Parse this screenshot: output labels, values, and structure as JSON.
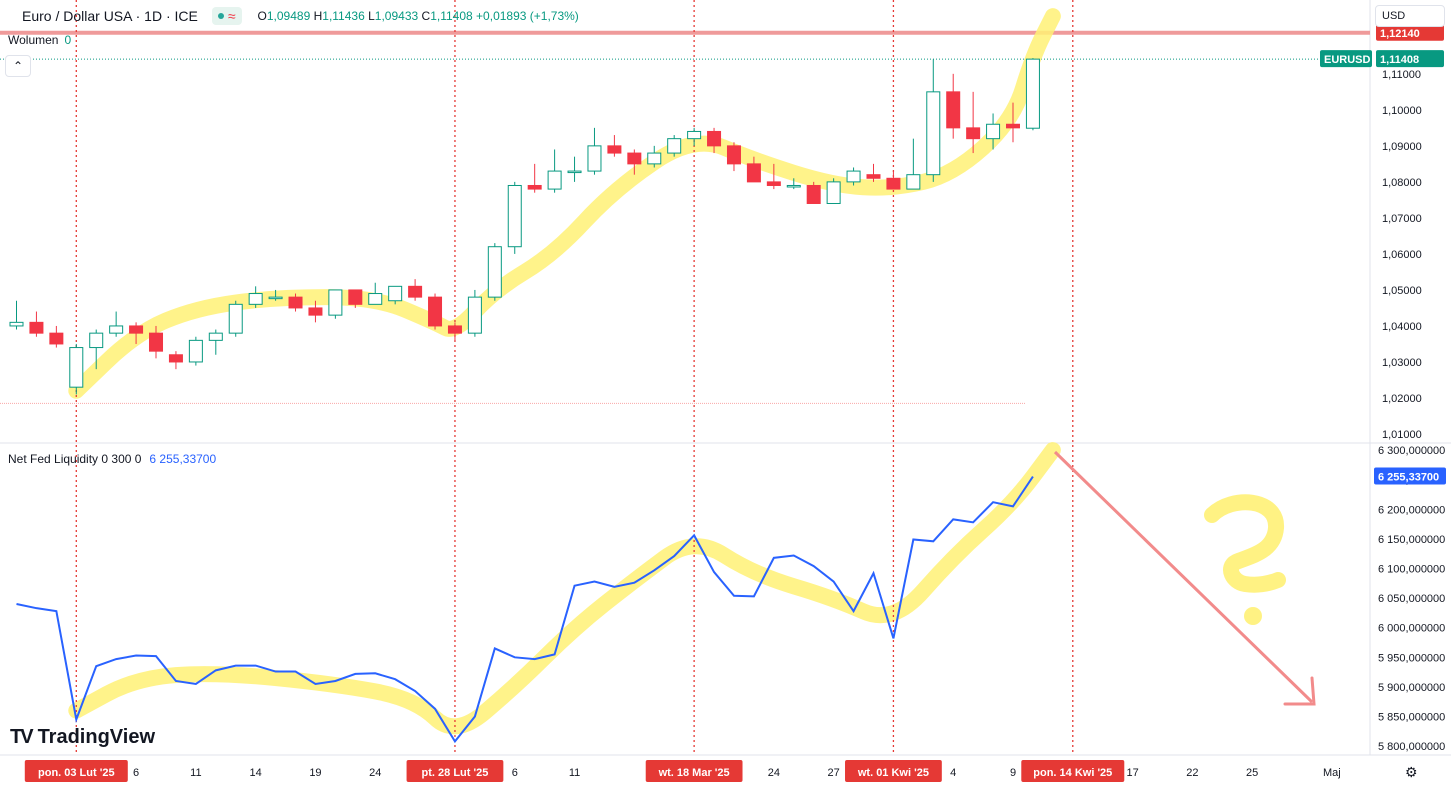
{
  "header": {
    "symbol_title": "Euro / Dollar USA · 1D · ICE",
    "status_icon": "≈",
    "o_label": "O",
    "o_value": "1,09489",
    "h_label": "H",
    "h_value": "1,11436",
    "l_label": "L",
    "l_value": "1,09433",
    "c_label": "C",
    "c_value": "1,11408",
    "change": "+0,01893 (+1,73%)"
  },
  "volume_legend": {
    "label": "Wolumen",
    "value": "0"
  },
  "currency_button": "USD",
  "indicator_legend": {
    "label": "Net Fed Liquidity 0 300 0",
    "value": "6 255,33700"
  },
  "logo_text": "TradingView",
  "price_badges": {
    "resistance": "1,12140",
    "symbol": "EURUSD",
    "last": "1,11408",
    "indicator_last": "6 255,33700"
  },
  "colors": {
    "up": "#089981",
    "down": "#f23645",
    "line": "#2962ff",
    "highlight": "#fff176",
    "resistance": "#ef9a9a",
    "marker": "#e53935",
    "arrow": "#f28b8b"
  },
  "chart_data": [
    {
      "type": "candlestick",
      "title": "Euro / Dollar USA · 1D · ICE",
      "ylim": [
        1.0075,
        1.1305
      ],
      "y_ticks": [
        "1,11000",
        "1,10000",
        "1,09000",
        "1,08000",
        "1,07000",
        "1,06000",
        "1,05000",
        "1,04000",
        "1,03000",
        "1,02000",
        "1,01000"
      ],
      "y_tick_values": [
        1.11,
        1.1,
        1.09,
        1.08,
        1.07,
        1.06,
        1.05,
        1.04,
        1.03,
        1.02,
        1.01
      ],
      "resistance_level": 1.1214,
      "last_price": 1.11408,
      "candles": [
        {
          "o": 1.04,
          "h": 1.047,
          "l": 1.039,
          "c": 1.041
        },
        {
          "o": 1.041,
          "h": 1.044,
          "l": 1.037,
          "c": 1.038
        },
        {
          "o": 1.038,
          "h": 1.04,
          "l": 1.034,
          "c": 1.035
        },
        {
          "o": 1.023,
          "h": 1.035,
          "l": 1.021,
          "c": 1.034
        },
        {
          "o": 1.034,
          "h": 1.039,
          "l": 1.028,
          "c": 1.038
        },
        {
          "o": 1.038,
          "h": 1.044,
          "l": 1.037,
          "c": 1.04
        },
        {
          "o": 1.04,
          "h": 1.041,
          "l": 1.035,
          "c": 1.038
        },
        {
          "o": 1.038,
          "h": 1.04,
          "l": 1.031,
          "c": 1.033
        },
        {
          "o": 1.032,
          "h": 1.033,
          "l": 1.028,
          "c": 1.03
        },
        {
          "o": 1.03,
          "h": 1.037,
          "l": 1.029,
          "c": 1.036
        },
        {
          "o": 1.036,
          "h": 1.039,
          "l": 1.032,
          "c": 1.038
        },
        {
          "o": 1.038,
          "h": 1.047,
          "l": 1.037,
          "c": 1.046
        },
        {
          "o": 1.046,
          "h": 1.051,
          "l": 1.045,
          "c": 1.049
        },
        {
          "o": 1.048,
          "h": 1.05,
          "l": 1.047,
          "c": 1.048
        },
        {
          "o": 1.048,
          "h": 1.049,
          "l": 1.044,
          "c": 1.045
        },
        {
          "o": 1.045,
          "h": 1.047,
          "l": 1.041,
          "c": 1.043
        },
        {
          "o": 1.043,
          "h": 1.05,
          "l": 1.042,
          "c": 1.05
        },
        {
          "o": 1.05,
          "h": 1.05,
          "l": 1.045,
          "c": 1.046
        },
        {
          "o": 1.046,
          "h": 1.052,
          "l": 1.046,
          "c": 1.049
        },
        {
          "o": 1.047,
          "h": 1.051,
          "l": 1.046,
          "c": 1.051
        },
        {
          "o": 1.051,
          "h": 1.053,
          "l": 1.047,
          "c": 1.048
        },
        {
          "o": 1.048,
          "h": 1.049,
          "l": 1.039,
          "c": 1.04
        },
        {
          "o": 1.04,
          "h": 1.041,
          "l": 1.036,
          "c": 1.038
        },
        {
          "o": 1.038,
          "h": 1.05,
          "l": 1.037,
          "c": 1.048
        },
        {
          "o": 1.048,
          "h": 1.063,
          "l": 1.047,
          "c": 1.062
        },
        {
          "o": 1.062,
          "h": 1.08,
          "l": 1.06,
          "c": 1.079
        },
        {
          "o": 1.079,
          "h": 1.085,
          "l": 1.077,
          "c": 1.078
        },
        {
          "o": 1.078,
          "h": 1.089,
          "l": 1.077,
          "c": 1.083
        },
        {
          "o": 1.083,
          "h": 1.087,
          "l": 1.08,
          "c": 1.083
        },
        {
          "o": 1.083,
          "h": 1.095,
          "l": 1.082,
          "c": 1.09
        },
        {
          "o": 1.09,
          "h": 1.093,
          "l": 1.087,
          "c": 1.088
        },
        {
          "o": 1.088,
          "h": 1.089,
          "l": 1.082,
          "c": 1.085
        },
        {
          "o": 1.085,
          "h": 1.09,
          "l": 1.084,
          "c": 1.088
        },
        {
          "o": 1.088,
          "h": 1.093,
          "l": 1.087,
          "c": 1.092
        },
        {
          "o": 1.092,
          "h": 1.095,
          "l": 1.09,
          "c": 1.094
        },
        {
          "o": 1.094,
          "h": 1.095,
          "l": 1.088,
          "c": 1.09
        },
        {
          "o": 1.09,
          "h": 1.091,
          "l": 1.083,
          "c": 1.085
        },
        {
          "o": 1.085,
          "h": 1.087,
          "l": 1.08,
          "c": 1.08
        },
        {
          "o": 1.08,
          "h": 1.085,
          "l": 1.078,
          "c": 1.079
        },
        {
          "o": 1.079,
          "h": 1.081,
          "l": 1.078,
          "c": 1.079
        },
        {
          "o": 1.079,
          "h": 1.08,
          "l": 1.074,
          "c": 1.074
        },
        {
          "o": 1.074,
          "h": 1.081,
          "l": 1.074,
          "c": 1.08
        },
        {
          "o": 1.08,
          "h": 1.084,
          "l": 1.079,
          "c": 1.083
        },
        {
          "o": 1.082,
          "h": 1.085,
          "l": 1.08,
          "c": 1.081
        },
        {
          "o": 1.081,
          "h": 1.083,
          "l": 1.078,
          "c": 1.078
        },
        {
          "o": 1.078,
          "h": 1.092,
          "l": 1.078,
          "c": 1.082
        },
        {
          "o": 1.082,
          "h": 1.114,
          "l": 1.08,
          "c": 1.105
        },
        {
          "o": 1.105,
          "h": 1.11,
          "l": 1.092,
          "c": 1.095
        },
        {
          "o": 1.095,
          "h": 1.105,
          "l": 1.088,
          "c": 1.092
        },
        {
          "o": 1.092,
          "h": 1.099,
          "l": 1.089,
          "c": 1.096
        },
        {
          "o": 1.096,
          "h": 1.102,
          "l": 1.091,
          "c": 1.095
        },
        {
          "o": 1.0949,
          "h": 1.11436,
          "l": 1.09433,
          "c": 1.11408
        }
      ]
    },
    {
      "type": "line",
      "title": "Net Fed Liquidity 0 300 0",
      "ylim": [
        5785000,
        6312000
      ],
      "y_ticks": [
        "6 300,000000",
        "6 250,000000",
        "6 200,000000",
        "6 150,000000",
        "6 100,000000",
        "6 050,000000",
        "6 000,000000",
        "5 950,000000",
        "5 900,000000",
        "5 850,000000",
        "5 800,000000"
      ],
      "y_tick_values": [
        6300000,
        6250000,
        6200000,
        6150000,
        6100000,
        6050000,
        6000000,
        5950000,
        5900000,
        5850000,
        5800000
      ],
      "series": [
        {
          "name": "Net Fed Liquidity",
          "values": [
            6040000,
            6033000,
            6028000,
            5845000,
            5935000,
            5947000,
            5953000,
            5952000,
            5910000,
            5905000,
            5928000,
            5936000,
            5936000,
            5926000,
            5926000,
            5905000,
            5910000,
            5922000,
            5923000,
            5913000,
            5893000,
            5863000,
            5808000,
            5850000,
            5965000,
            5950000,
            5947000,
            5955000,
            6071000,
            6078000,
            6069000,
            6076000,
            6097000,
            6121000,
            6156000,
            6094000,
            6054000,
            6053000,
            6118000,
            6122000,
            6104000,
            6078000,
            6028000,
            6092000,
            5982000,
            6149000,
            6146000,
            6183000,
            6178000,
            6212000,
            6205000,
            6255337
          ],
          "last_value": "6 255,33700"
        }
      ]
    }
  ],
  "x_axis": {
    "ticks": [
      {
        "label": "pon. 03 Lut '25",
        "index": 3,
        "highlight": true
      },
      {
        "label": "6",
        "index": 6
      },
      {
        "label": "11",
        "index": 9
      },
      {
        "label": "14",
        "index": 12
      },
      {
        "label": "19",
        "index": 15
      },
      {
        "label": "24",
        "index": 18
      },
      {
        "label": "pt. 28 Lut '25",
        "index": 22,
        "highlight": true
      },
      {
        "label": "6",
        "index": 25
      },
      {
        "label": "11",
        "index": 28
      },
      {
        "label": "wt. 18 Mar '25",
        "index": 34,
        "highlight": true
      },
      {
        "label": "24",
        "index": 38
      },
      {
        "label": "27",
        "index": 41
      },
      {
        "label": "wt. 01 Kwi '25",
        "index": 44,
        "highlight": true
      },
      {
        "label": "4",
        "index": 47
      },
      {
        "label": "9",
        "index": 50
      },
      {
        "label": "pon. 14 Kwi '25",
        "index": 53,
        "highlight": true
      },
      {
        "label": "17",
        "index": 56
      },
      {
        "label": "22",
        "index": 59
      },
      {
        "label": "25",
        "index": 62
      },
      {
        "label": "Maj",
        "index": 66
      }
    ]
  },
  "annotations": {
    "note": "?"
  }
}
